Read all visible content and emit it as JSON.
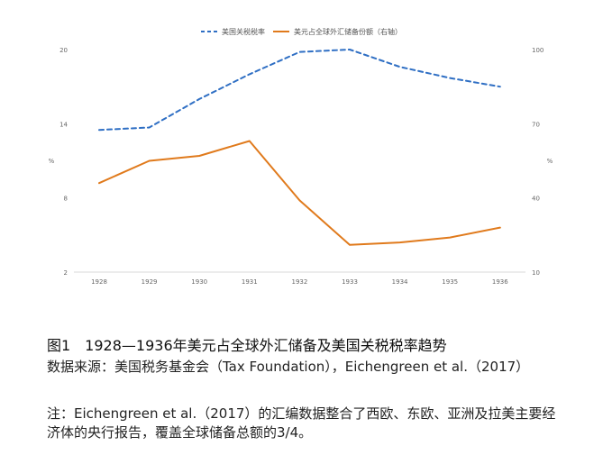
{
  "chart_data": {
    "type": "line",
    "x": [
      "1928",
      "1929",
      "1930",
      "1931",
      "1932",
      "1933",
      "1934",
      "1935",
      "1936"
    ],
    "series": [
      {
        "name": "美国关税税率",
        "axis": "left",
        "style": "dashed",
        "color": "#2f6fc4",
        "values": [
          13.5,
          13.7,
          16.0,
          18.0,
          19.8,
          20.0,
          18.6,
          17.7,
          17.0
        ]
      },
      {
        "name": "美元占全球外汇储备份额（右轴）",
        "axis": "right",
        "style": "solid",
        "color": "#e07a1c",
        "values": [
          46,
          55,
          57,
          63,
          39,
          21,
          22,
          24,
          28
        ]
      }
    ],
    "left_axis": {
      "label": "%",
      "ticks": [
        "2",
        "8",
        "14",
        "20"
      ],
      "range": [
        2,
        20
      ]
    },
    "right_axis": {
      "label": "%",
      "ticks": [
        "10",
        "40",
        "70",
        "100"
      ],
      "range": [
        10,
        100
      ]
    },
    "legend_position": "top-center",
    "grid": false
  },
  "caption": {
    "title": "图1　1928—1936年美元占全球外汇储备及美国关税税率趋势",
    "source": "数据来源：美国税务基金会（Tax Foundation），Eichengreen et al.（2017）",
    "note": "注：Eichengreen et al.（2017）的汇编数据整合了西欧、东欧、亚洲及拉美主要经济体的央行报告，覆盖全球储备总额的3/4。"
  }
}
